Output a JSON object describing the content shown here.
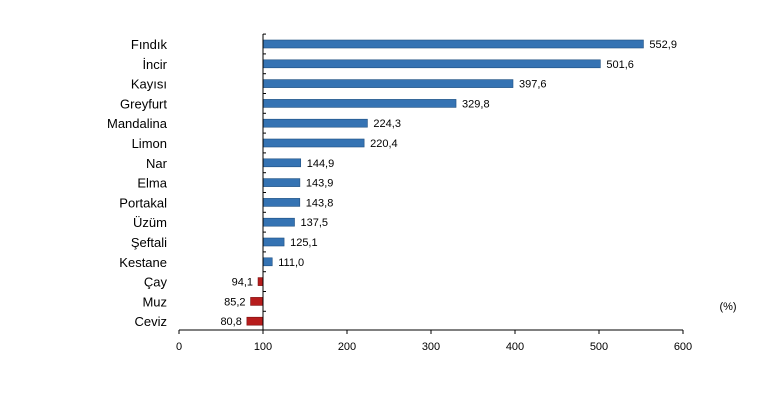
{
  "chart_data": {
    "type": "bar",
    "orientation": "horizontal",
    "categories": [
      "Fındık",
      "İncir",
      "Kayısı",
      "Greyfurt",
      "Mandalina",
      "Limon",
      "Nar",
      "Elma",
      "Portakal",
      "Üzüm",
      "Şeftali",
      "Kestane",
      "Çay",
      "Muz",
      "Ceviz"
    ],
    "values": [
      552.9,
      501.6,
      397.6,
      329.8,
      224.3,
      220.4,
      144.9,
      143.9,
      143.8,
      137.5,
      125.1,
      111.0,
      94.1,
      85.2,
      80.8
    ],
    "value_labels": [
      "552,9",
      "501,6",
      "397,6",
      "329,8",
      "224,3",
      "220,4",
      "144,9",
      "143,9",
      "143,8",
      "137,5",
      "125,1",
      "111,0",
      "94,1",
      "85,2",
      "80,8"
    ],
    "baseline": 100,
    "xlim": [
      0,
      600
    ],
    "x_ticks": [
      0,
      100,
      200,
      300,
      400,
      500,
      600
    ],
    "x_tick_labels": [
      "0",
      "100",
      "200",
      "300",
      "400",
      "500",
      "600"
    ],
    "unit_label": "(%)",
    "grid": false,
    "legend": "none",
    "colors": {
      "above_baseline": "#3573b3",
      "below_baseline": "#b71c1c",
      "bar_stroke": "#1f4f80",
      "axis": "#000000"
    }
  }
}
